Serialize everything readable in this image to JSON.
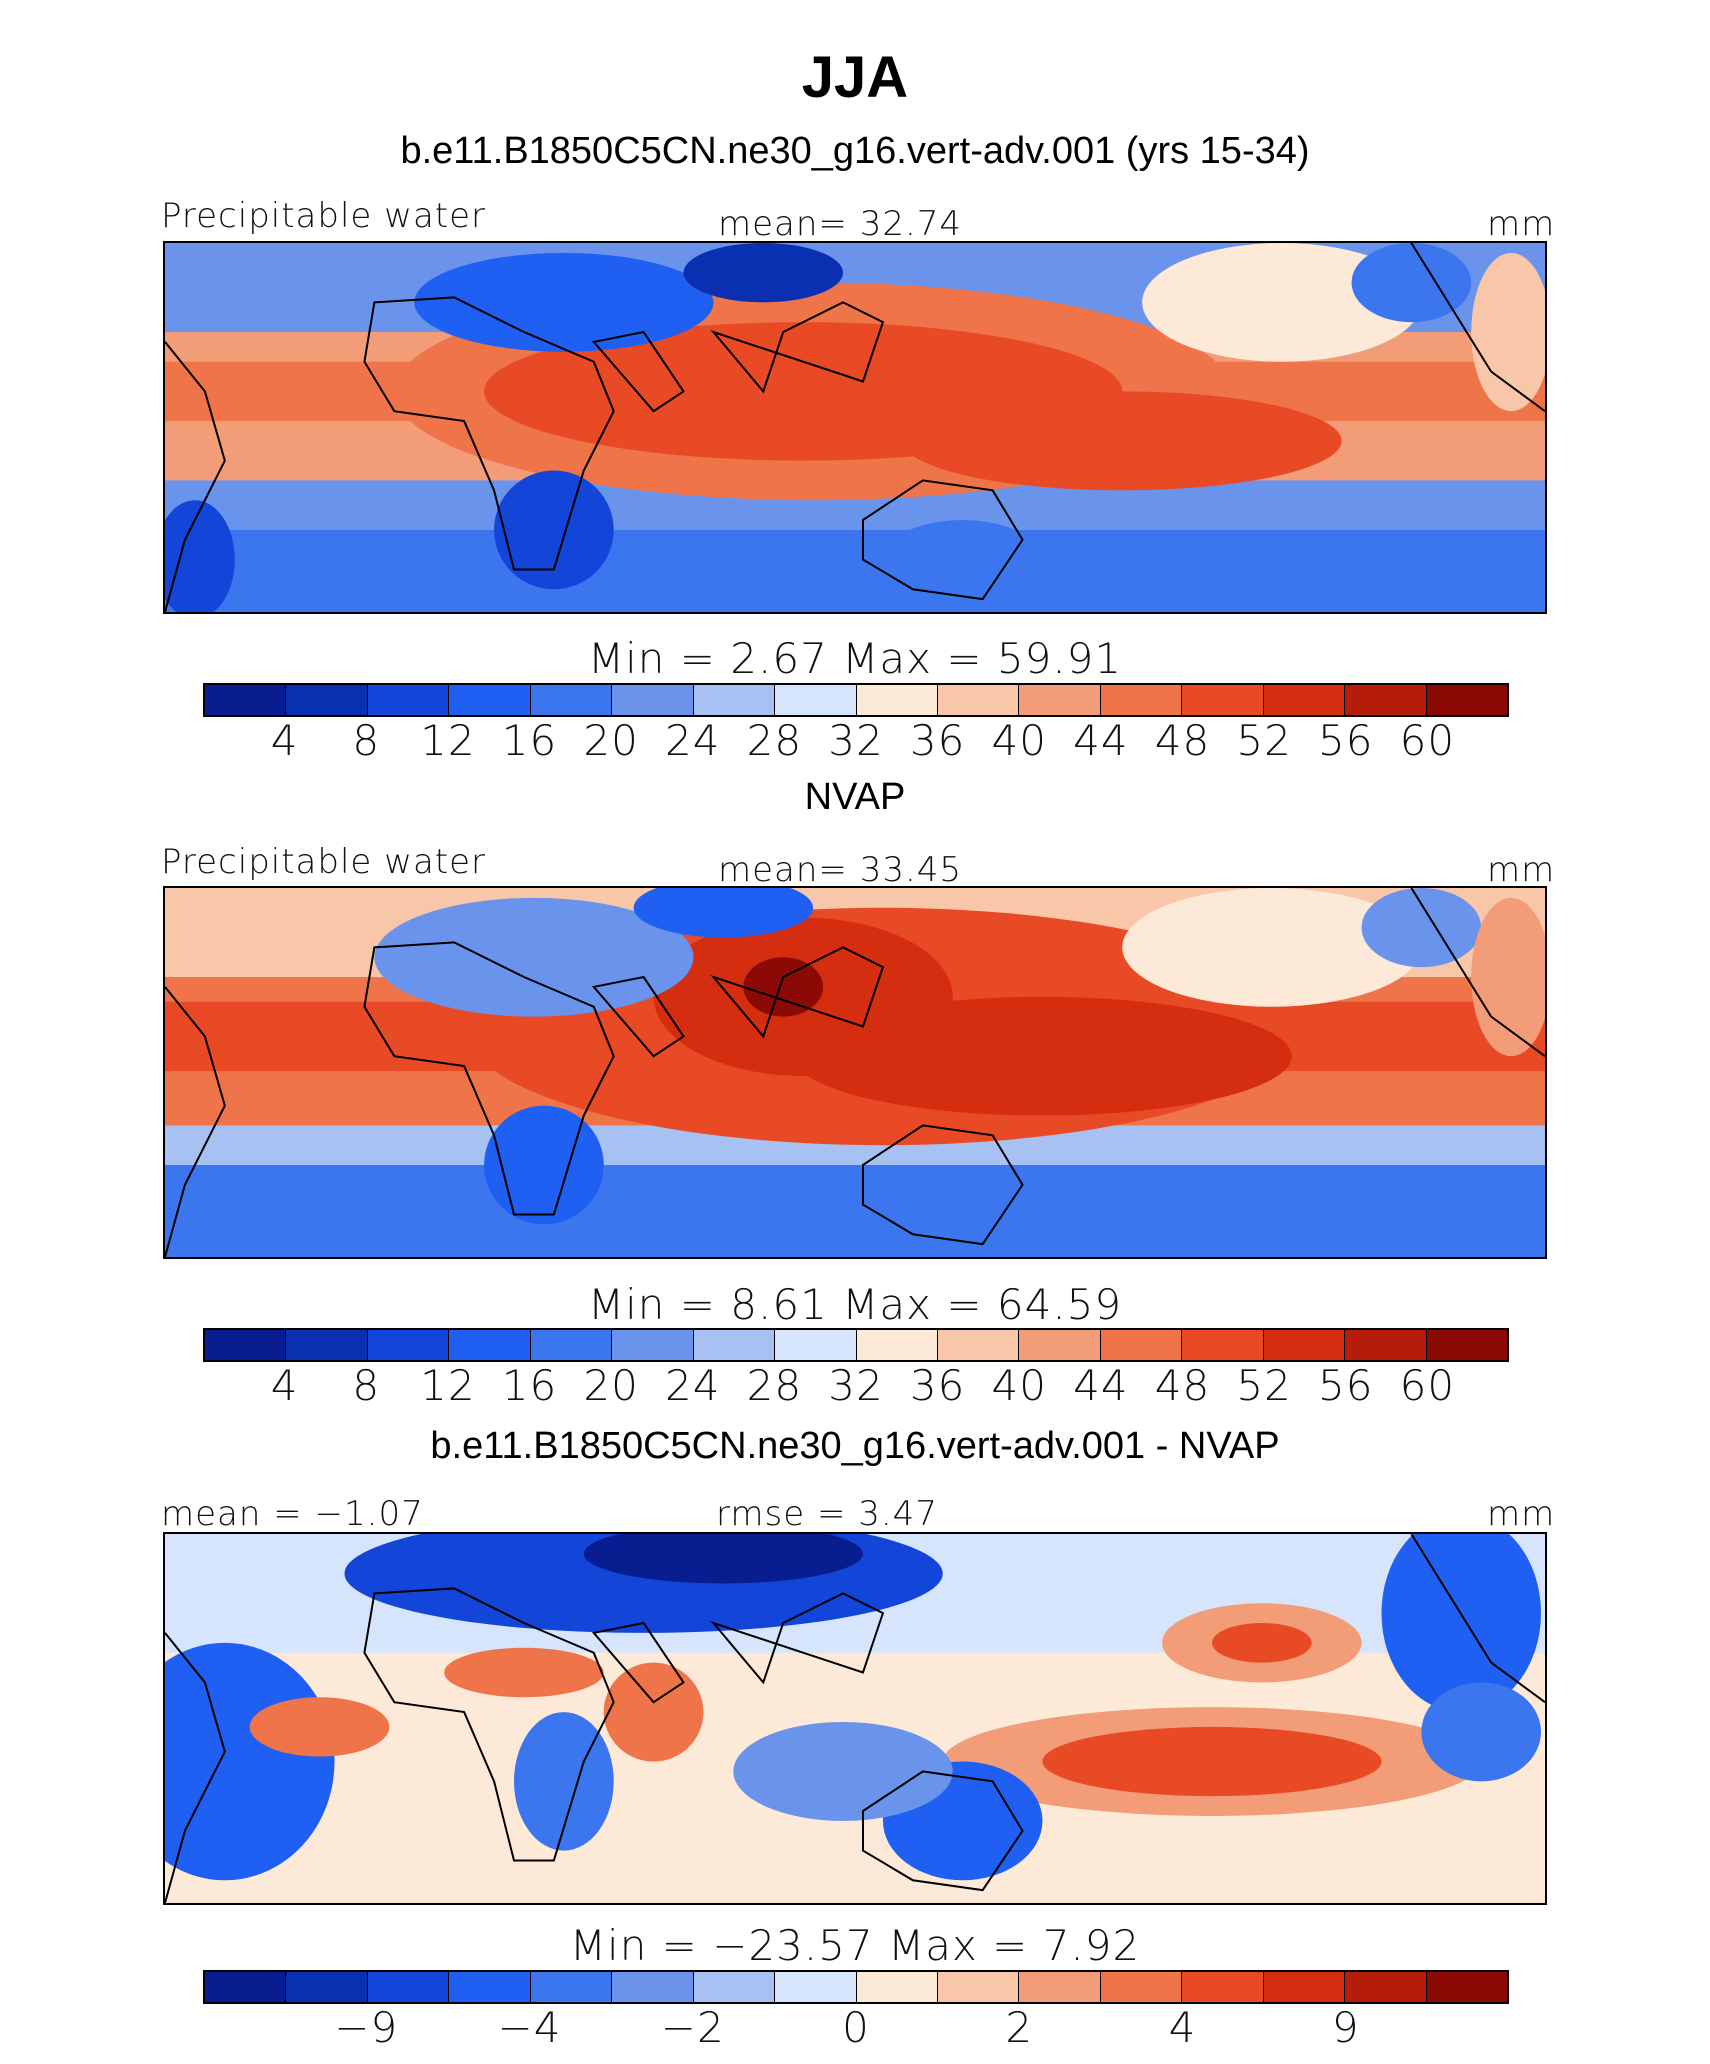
{
  "figure": {
    "title": "JJA"
  },
  "colors": [
    "#081d8f",
    "#0a2fb0",
    "#1346d8",
    "#1f5ff2",
    "#3b76ef",
    "#6a93ec",
    "#a7c1f2",
    "#d6e5fb",
    "#fde9d8",
    "#f8c6a8",
    "#f39c78",
    "#ef7449",
    "#e84a25",
    "#d52d10",
    "#b51c0a",
    "#8c0a05"
  ],
  "panels": [
    {
      "title": "b.e11.B1850C5CN.ne30_g16.vert-adv.001 (yrs 15-34)",
      "left_label": "Precipitable water",
      "center_label": "mean=   32.74",
      "right_label": "mm",
      "minmax": "Min  =     2.67  Max  =    59.91",
      "ticks": [
        "4",
        "8",
        "12",
        "16",
        "20",
        "24",
        "28",
        "32",
        "36",
        "40",
        "44",
        "48",
        "52",
        "56",
        "60"
      ]
    },
    {
      "title": "NVAP",
      "left_label": "Precipitable water",
      "center_label": "mean=   33.45",
      "right_label": "mm",
      "minmax": "Min  =     8.61  Max  =    64.59",
      "ticks": [
        "4",
        "8",
        "12",
        "16",
        "20",
        "24",
        "28",
        "32",
        "36",
        "40",
        "44",
        "48",
        "52",
        "56",
        "60"
      ]
    },
    {
      "title": "b.e11.B1850C5CN.ne30_g16.vert-adv.001 - NVAP",
      "left_label": "mean  =   −1.07",
      "center_label": "rmse  =     3.47",
      "right_label": "mm",
      "minmax": "Min  =  −23.57  Max  =     7.92",
      "ticks": [
        "−9",
        "−4",
        "−2",
        "0",
        "2",
        "4",
        "9"
      ]
    }
  ]
}
